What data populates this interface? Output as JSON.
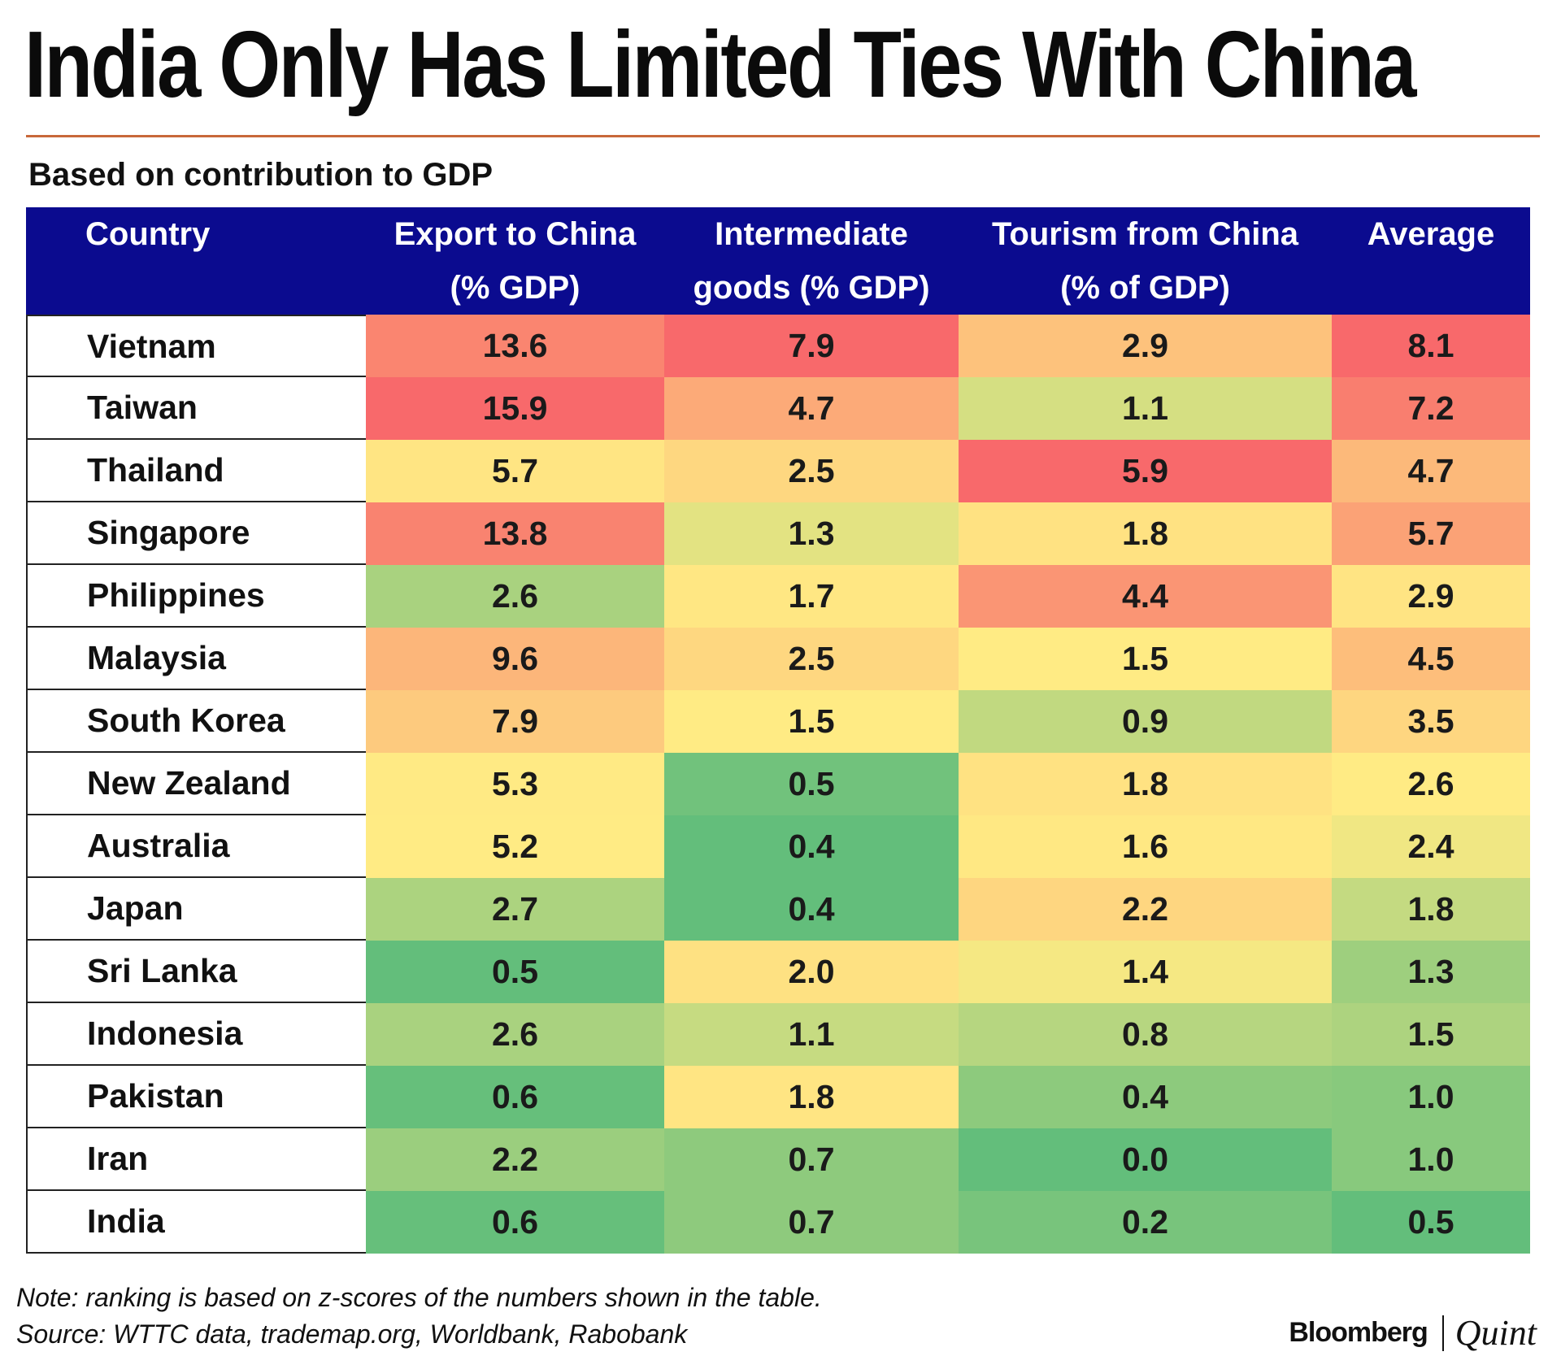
{
  "title": "India Only Has Limited Ties With China",
  "subtitle": "Based on contribution to GDP",
  "note": "Note: ranking is based on z-scores of the numbers shown in the table.",
  "source": "Source: WTTC data, trademap.org, Worldbank, Rabobank",
  "brand": {
    "primary": "Bloomberg",
    "secondary": "Quint"
  },
  "colors": {
    "header_bg": "#0b0b8f",
    "rule": "#c8683a",
    "scale_low": "#63be7b",
    "scale_mid": "#ffeb84",
    "scale_high": "#f8696b"
  },
  "chart_data": {
    "type": "table",
    "title": "India Only Has Limited Ties With China",
    "subtitle": "Based on contribution to GDP",
    "columns": [
      {
        "key": "country",
        "lines": [
          "Country",
          ""
        ]
      },
      {
        "key": "export",
        "lines": [
          "Export to China",
          "(% GDP)"
        ]
      },
      {
        "key": "intermediate",
        "lines": [
          "Intermediate",
          "goods (% GDP)"
        ]
      },
      {
        "key": "tourism",
        "lines": [
          "Tourism from China",
          "(% of GDP)"
        ]
      },
      {
        "key": "average",
        "lines": [
          "Average",
          ""
        ]
      }
    ],
    "rows": [
      {
        "country": "Vietnam",
        "values": [
          "13.6",
          "7.9",
          "2.9",
          "8.1"
        ]
      },
      {
        "country": "Taiwan",
        "values": [
          "15.9",
          "4.7",
          "1.1",
          "7.2"
        ]
      },
      {
        "country": "Thailand",
        "values": [
          "5.7",
          "2.5",
          "5.9",
          "4.7"
        ]
      },
      {
        "country": "Singapore",
        "values": [
          "13.8",
          "1.3",
          "1.8",
          "5.7"
        ]
      },
      {
        "country": "Philippines",
        "values": [
          "2.6",
          "1.7",
          "4.4",
          "2.9"
        ]
      },
      {
        "country": "Malaysia",
        "values": [
          "9.6",
          "2.5",
          "1.5",
          "4.5"
        ]
      },
      {
        "country": "South Korea",
        "values": [
          "7.9",
          "1.5",
          "0.9",
          "3.5"
        ]
      },
      {
        "country": "New Zealand",
        "values": [
          "5.3",
          "0.5",
          "1.8",
          "2.6"
        ]
      },
      {
        "country": "Australia",
        "values": [
          "5.2",
          "0.4",
          "1.6",
          "2.4"
        ]
      },
      {
        "country": "Japan",
        "values": [
          "2.7",
          "0.4",
          "2.2",
          "1.8"
        ]
      },
      {
        "country": "Sri Lanka",
        "values": [
          "0.5",
          "2.0",
          "1.4",
          "1.3"
        ]
      },
      {
        "country": "Indonesia",
        "values": [
          "2.6",
          "1.1",
          "0.8",
          "1.5"
        ]
      },
      {
        "country": "Pakistan",
        "values": [
          "0.6",
          "1.8",
          "0.4",
          "1.0"
        ]
      },
      {
        "country": "Iran",
        "values": [
          "2.2",
          "0.7",
          "0.0",
          "1.0"
        ]
      },
      {
        "country": "India",
        "values": [
          "0.6",
          "0.7",
          "0.2",
          "0.5"
        ]
      }
    ]
  }
}
